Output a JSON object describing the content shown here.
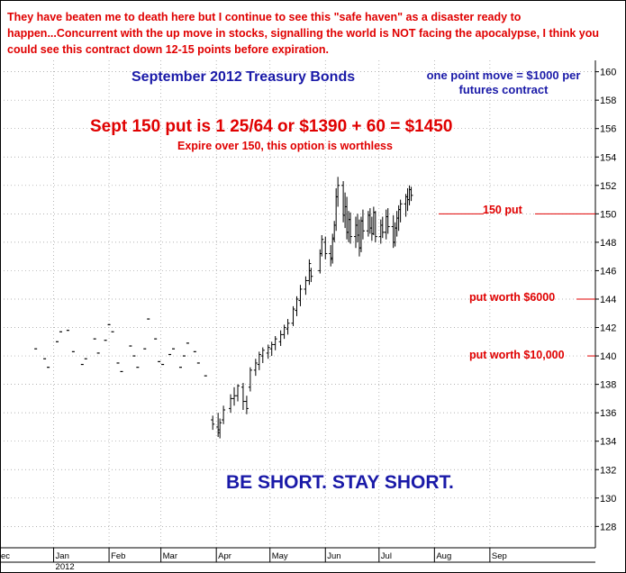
{
  "headline": "They have beaten me to death here but I continue to see this \"safe haven\" as a disaster ready to happen...Concurrent with the up move in stocks, signalling the world is NOT facing the apocalypse, I think you could see this contract down 12-15 points before expiration.",
  "point_note": "one point move = $1000 per futures contract",
  "put_price": "Sept 150 put is 1 25/64 or $1390 + 60 = $1450",
  "expire_note": "Expire over 150, this option is worthless",
  "call_to_action": "BE SHORT. STAY SHORT.",
  "colors": {
    "annotation": "#e00000",
    "title": "#1a1aa8",
    "bars": "#000000",
    "grid": "#9a9a9a"
  },
  "chart_data": {
    "type": "ohlc",
    "title": "September 2012 Treasury Bonds",
    "xlabel": "",
    "ylabel": "",
    "ylim": [
      126.5,
      160.8
    ],
    "y_ticks": [
      128,
      130,
      132,
      134,
      136,
      138,
      140,
      142,
      144,
      146,
      148,
      150,
      152,
      154,
      156,
      158,
      160
    ],
    "y_axis_side": "right",
    "grid": "dotted",
    "x_ticks": [
      "ec",
      "Jan",
      "Feb",
      "Mar",
      "Apr",
      "May",
      "Jun",
      "Jul",
      "Aug",
      "Sep"
    ],
    "x_ticks_month": [
      "2011-12",
      "2012-01",
      "2012-02",
      "2012-03",
      "2012-04",
      "2012-05",
      "2012-06",
      "2012-07",
      "2012-08",
      "2012-09"
    ],
    "year_label": "2012",
    "reference_line": {
      "value": 150,
      "label": "150 put"
    },
    "annotations": [
      {
        "label": "150 put",
        "value": 150
      },
      {
        "label": "put worth $6000",
        "value": 144
      },
      {
        "label": "put worth $10,000",
        "value": 140
      }
    ],
    "thin_period_dashes": [
      {
        "date": "2011-12-22",
        "v": 140.5
      },
      {
        "date": "2011-12-27",
        "v": 139.8
      },
      {
        "date": "2011-12-29",
        "v": 139.2
      },
      {
        "date": "2012-01-03",
        "v": 141.0
      },
      {
        "date": "2012-01-05",
        "v": 141.7
      },
      {
        "date": "2012-01-09",
        "v": 141.8
      },
      {
        "date": "2012-01-12",
        "v": 140.3
      },
      {
        "date": "2012-01-17",
        "v": 139.4
      },
      {
        "date": "2012-01-19",
        "v": 139.8
      },
      {
        "date": "2012-01-24",
        "v": 141.2
      },
      {
        "date": "2012-01-26",
        "v": 140.2
      },
      {
        "date": "2012-01-30",
        "v": 141.1
      },
      {
        "date": "2012-02-01",
        "v": 142.2
      },
      {
        "date": "2012-02-03",
        "v": 141.7
      },
      {
        "date": "2012-02-06",
        "v": 139.5
      },
      {
        "date": "2012-02-08",
        "v": 138.9
      },
      {
        "date": "2012-02-13",
        "v": 140.7
      },
      {
        "date": "2012-02-15",
        "v": 140.0
      },
      {
        "date": "2012-02-17",
        "v": 139.2
      },
      {
        "date": "2012-02-21",
        "v": 140.5
      },
      {
        "date": "2012-02-23",
        "v": 142.6
      },
      {
        "date": "2012-02-27",
        "v": 141.2
      },
      {
        "date": "2012-02-29",
        "v": 139.6
      },
      {
        "date": "2012-03-02",
        "v": 139.4
      },
      {
        "date": "2012-03-06",
        "v": 140.1
      },
      {
        "date": "2012-03-08",
        "v": 140.5
      },
      {
        "date": "2012-03-12",
        "v": 139.2
      },
      {
        "date": "2012-03-14",
        "v": 140.0
      },
      {
        "date": "2012-03-16",
        "v": 140.9
      },
      {
        "date": "2012-03-20",
        "v": 140.3
      },
      {
        "date": "2012-03-22",
        "v": 139.5
      },
      {
        "date": "2012-03-26",
        "v": 138.6
      }
    ],
    "ohlc": [
      {
        "date": "2012-03-30",
        "h": 135.8,
        "l": 134.8,
        "o": 135.5,
        "c": 135.2
      },
      {
        "date": "2012-04-02",
        "h": 136.0,
        "l": 134.3,
        "o": 135.0,
        "c": 134.6
      },
      {
        "date": "2012-04-03",
        "h": 135.6,
        "l": 134.2,
        "o": 134.8,
        "c": 135.3
      },
      {
        "date": "2012-04-05",
        "h": 136.5,
        "l": 135.2,
        "o": 135.5,
        "c": 136.2
      },
      {
        "date": "2012-04-09",
        "h": 137.3,
        "l": 136.0,
        "o": 136.3,
        "c": 137.0
      },
      {
        "date": "2012-04-11",
        "h": 137.8,
        "l": 136.5,
        "o": 137.0,
        "c": 137.2
      },
      {
        "date": "2012-04-13",
        "h": 138.0,
        "l": 136.8,
        "o": 137.2,
        "c": 137.9
      },
      {
        "date": "2012-04-16",
        "h": 138.1,
        "l": 136.2,
        "o": 137.8,
        "c": 136.8
      },
      {
        "date": "2012-04-18",
        "h": 137.2,
        "l": 135.9,
        "o": 136.8,
        "c": 136.3
      },
      {
        "date": "2012-04-20",
        "h": 139.2,
        "l": 137.5,
        "o": 137.8,
        "c": 139.0
      },
      {
        "date": "2012-04-23",
        "h": 139.8,
        "l": 138.6,
        "o": 139.0,
        "c": 139.5
      },
      {
        "date": "2012-04-25",
        "h": 140.3,
        "l": 139.0,
        "o": 139.4,
        "c": 140.1
      },
      {
        "date": "2012-04-27",
        "h": 140.6,
        "l": 139.5,
        "o": 140.0,
        "c": 140.4
      },
      {
        "date": "2012-04-30",
        "h": 140.8,
        "l": 139.8,
        "o": 140.2,
        "c": 140.6
      },
      {
        "date": "2012-05-02",
        "h": 141.0,
        "l": 140.0,
        "o": 140.5,
        "c": 140.8
      },
      {
        "date": "2012-05-04",
        "h": 141.4,
        "l": 140.4,
        "o": 140.8,
        "c": 141.2
      },
      {
        "date": "2012-05-07",
        "h": 141.8,
        "l": 140.7,
        "o": 141.0,
        "c": 141.5
      },
      {
        "date": "2012-05-09",
        "h": 142.2,
        "l": 141.2,
        "o": 141.5,
        "c": 142.0
      },
      {
        "date": "2012-05-11",
        "h": 142.6,
        "l": 141.5,
        "o": 141.9,
        "c": 142.3
      },
      {
        "date": "2012-05-14",
        "h": 143.5,
        "l": 142.1,
        "o": 142.3,
        "c": 143.3
      },
      {
        "date": "2012-05-16",
        "h": 144.2,
        "l": 142.8,
        "o": 143.2,
        "c": 144.0
      },
      {
        "date": "2012-05-18",
        "h": 145.0,
        "l": 143.5,
        "o": 143.9,
        "c": 144.7
      },
      {
        "date": "2012-05-21",
        "h": 145.6,
        "l": 144.3,
        "o": 144.7,
        "c": 145.3
      },
      {
        "date": "2012-05-23",
        "h": 146.8,
        "l": 145.0,
        "o": 145.3,
        "c": 146.5
      },
      {
        "date": "2012-05-24",
        "h": 146.2,
        "l": 145.2,
        "o": 146.0,
        "c": 145.6
      },
      {
        "date": "2012-05-29",
        "h": 147.5,
        "l": 145.8,
        "o": 146.0,
        "c": 147.2
      },
      {
        "date": "2012-05-30",
        "h": 148.5,
        "l": 147.0,
        "o": 147.2,
        "c": 148.2
      },
      {
        "date": "2012-06-01",
        "h": 148.4,
        "l": 146.8,
        "o": 148.0,
        "c": 147.2
      },
      {
        "date": "2012-06-04",
        "h": 147.8,
        "l": 146.3,
        "o": 147.2,
        "c": 146.8
      },
      {
        "date": "2012-06-05",
        "h": 148.6,
        "l": 146.5,
        "o": 146.9,
        "c": 148.2
      },
      {
        "date": "2012-06-06",
        "h": 149.5,
        "l": 148.0,
        "o": 148.3,
        "c": 149.2
      },
      {
        "date": "2012-06-07",
        "h": 151.8,
        "l": 148.8,
        "o": 149.2,
        "c": 151.2
      },
      {
        "date": "2012-06-08",
        "h": 152.6,
        "l": 150.5,
        "o": 151.2,
        "c": 152.0
      },
      {
        "date": "2012-06-11",
        "h": 152.3,
        "l": 149.4,
        "o": 152.0,
        "c": 149.9
      },
      {
        "date": "2012-06-12",
        "h": 151.5,
        "l": 149.0,
        "o": 149.9,
        "c": 150.5
      },
      {
        "date": "2012-06-13",
        "h": 151.2,
        "l": 148.2,
        "o": 150.5,
        "c": 148.7
      },
      {
        "date": "2012-06-14",
        "h": 150.2,
        "l": 148.0,
        "o": 148.7,
        "c": 149.6
      },
      {
        "date": "2012-06-15",
        "h": 150.1,
        "l": 147.9,
        "o": 149.6,
        "c": 148.4
      },
      {
        "date": "2012-06-18",
        "h": 149.8,
        "l": 147.6,
        "o": 148.4,
        "c": 149.2
      },
      {
        "date": "2012-06-19",
        "h": 150.0,
        "l": 148.0,
        "o": 149.2,
        "c": 148.5
      },
      {
        "date": "2012-06-20",
        "h": 149.6,
        "l": 147.0,
        "o": 148.5,
        "c": 147.6
      },
      {
        "date": "2012-06-21",
        "h": 149.8,
        "l": 147.3,
        "o": 147.6,
        "c": 149.5
      },
      {
        "date": "2012-06-22",
        "h": 150.3,
        "l": 148.2,
        "o": 149.5,
        "c": 148.8
      },
      {
        "date": "2012-06-25",
        "h": 150.2,
        "l": 148.4,
        "o": 148.8,
        "c": 149.9
      },
      {
        "date": "2012-06-26",
        "h": 150.4,
        "l": 148.6,
        "o": 149.9,
        "c": 149.0
      },
      {
        "date": "2012-06-27",
        "h": 149.8,
        "l": 148.1,
        "o": 149.0,
        "c": 148.6
      },
      {
        "date": "2012-06-28",
        "h": 150.5,
        "l": 148.5,
        "o": 148.6,
        "c": 150.1
      },
      {
        "date": "2012-06-29",
        "h": 150.2,
        "l": 148.0,
        "o": 150.1,
        "c": 148.4
      },
      {
        "date": "2012-07-02",
        "h": 149.6,
        "l": 147.9,
        "o": 148.4,
        "c": 149.2
      },
      {
        "date": "2012-07-03",
        "h": 149.8,
        "l": 148.3,
        "o": 149.2,
        "c": 148.7
      },
      {
        "date": "2012-07-05",
        "h": 150.3,
        "l": 148.2,
        "o": 148.7,
        "c": 149.8
      },
      {
        "date": "2012-07-06",
        "h": 150.4,
        "l": 148.6,
        "o": 149.8,
        "c": 149.1
      },
      {
        "date": "2012-07-09",
        "h": 149.9,
        "l": 147.6,
        "o": 149.1,
        "c": 148.0
      },
      {
        "date": "2012-07-10",
        "h": 149.4,
        "l": 147.7,
        "o": 148.0,
        "c": 149.0
      },
      {
        "date": "2012-07-11",
        "h": 150.2,
        "l": 148.4,
        "o": 149.0,
        "c": 149.7
      },
      {
        "date": "2012-07-12",
        "h": 150.6,
        "l": 148.8,
        "o": 149.7,
        "c": 150.3
      },
      {
        "date": "2012-07-13",
        "h": 151.0,
        "l": 149.4,
        "o": 150.3,
        "c": 150.7
      },
      {
        "date": "2012-07-16",
        "h": 151.4,
        "l": 149.8,
        "o": 150.7,
        "c": 151.2
      },
      {
        "date": "2012-07-17",
        "h": 151.8,
        "l": 150.2,
        "o": 151.2,
        "c": 151.0
      },
      {
        "date": "2012-07-18",
        "h": 152.0,
        "l": 150.6,
        "o": 151.0,
        "c": 151.7
      },
      {
        "date": "2012-07-19",
        "h": 151.9,
        "l": 150.9,
        "o": 151.7,
        "c": 151.3
      }
    ]
  }
}
